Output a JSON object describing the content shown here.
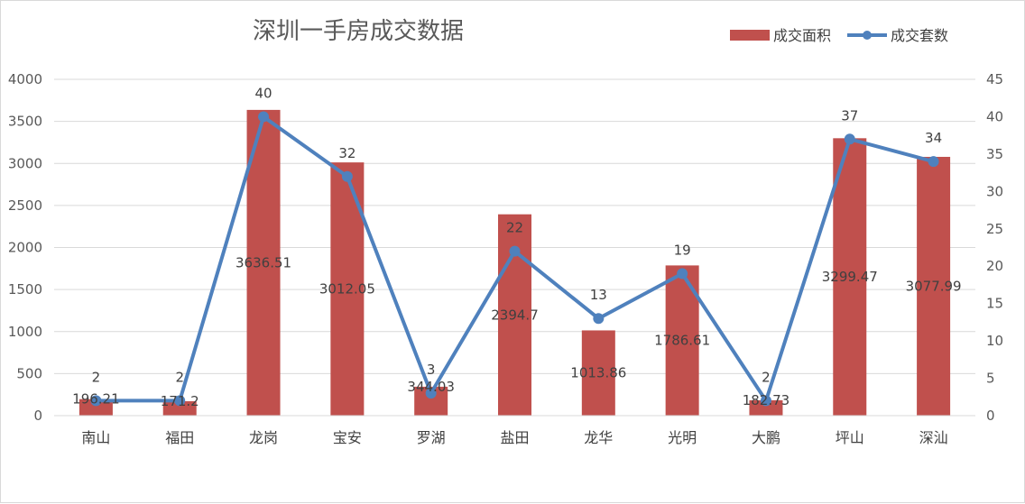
{
  "chart_data": {
    "type": "bar",
    "title": "深圳一手房成交数据",
    "categories": [
      "南山",
      "福田",
      "龙岗",
      "宝安",
      "罗湖",
      "盐田",
      "龙华",
      "光明",
      "大鹏",
      "坪山",
      "深汕"
    ],
    "series": [
      {
        "name": "成交面积",
        "type": "bar",
        "axis": "left",
        "color": "#c0504d",
        "values": [
          196.21,
          171.2,
          3636.51,
          3012.05,
          344.03,
          2394.7,
          1013.86,
          1786.61,
          182.73,
          3299.47,
          3077.99
        ],
        "labels": [
          "196.21",
          "171.2",
          "3636.51",
          "3012.05",
          "344.03",
          "2394.7",
          "1013.86",
          "1786.61",
          "182.73",
          "3299.47",
          "3077.99"
        ]
      },
      {
        "name": "成交套数",
        "type": "line",
        "axis": "right",
        "color": "#4f81bd",
        "values": [
          2,
          2,
          40,
          32,
          3,
          22,
          13,
          19,
          2,
          37,
          34
        ],
        "labels": [
          "2",
          "2",
          "40",
          "32",
          "3",
          "22",
          "13",
          "19",
          "2",
          "37",
          "34"
        ]
      }
    ],
    "y_left": {
      "min": 0,
      "max": 4000,
      "ticks": [
        "0",
        "500",
        "1000",
        "1500",
        "2000",
        "2500",
        "3000",
        "3500",
        "4000"
      ]
    },
    "y_right": {
      "min": 0,
      "max": 45,
      "ticks": [
        "0",
        "5",
        "10",
        "15",
        "20",
        "25",
        "30",
        "35",
        "40",
        "45"
      ]
    },
    "grid": true,
    "legend_position": "top-right"
  }
}
